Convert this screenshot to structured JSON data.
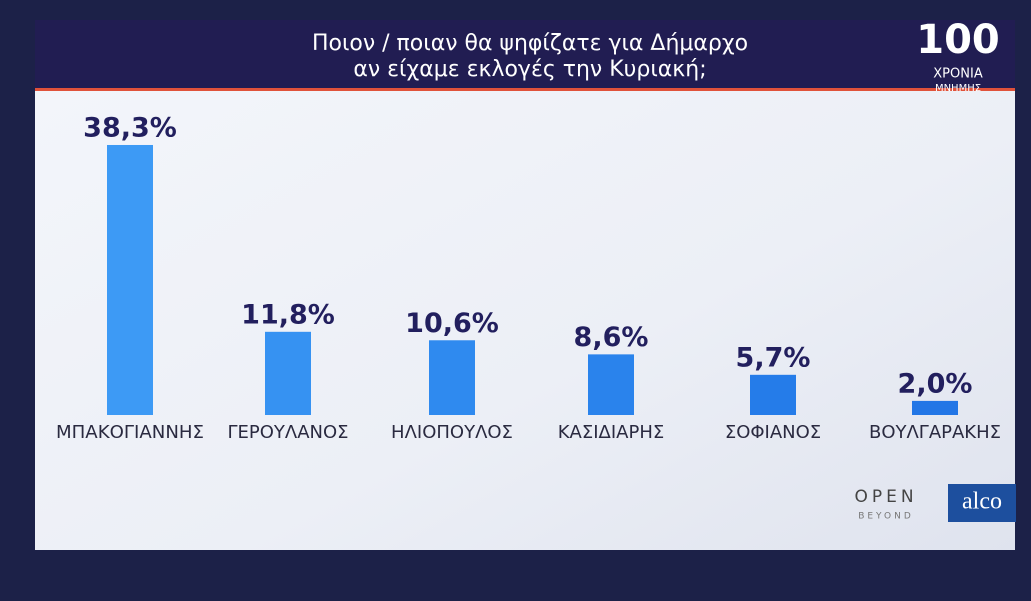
{
  "chart_data": {
    "type": "bar",
    "title": [
      "Ποιον / ποιαν θα ψηφίζατε για Δήμαρχο",
      "αν είχαμε εκλογές την Κυριακή;"
    ],
    "categories": [
      "ΜΠΑΚΟΓΙΑΝΝΗΣ",
      "ΓΕΡΟΥΛΑΝΟΣ",
      "ΗΛΙΟΠΟΥΛΟΣ",
      "ΚΑΣΙΔΙΑΡΗΣ",
      "ΣΟΦΙΑΝΟΣ",
      "ΒΟΥΛΓΑΡΑΚΗΣ"
    ],
    "values": [
      38.3,
      11.8,
      10.6,
      8.6,
      5.7,
      2.0
    ],
    "value_labels": [
      "38,3%",
      "11,8%",
      "10,6%",
      "8,6%",
      "5,7%",
      "2,0%"
    ],
    "colors": [
      "#3d9af5",
      "#3692f2",
      "#2f8aef",
      "#2a83ec",
      "#257ce9",
      "#2276e6"
    ]
  },
  "logos": {
    "anniversary": [
      "100",
      "ΧΡΟΝΙΑ",
      "ΜΝΗΜΗΣ"
    ],
    "channel": [
      "OPEN",
      "BEYOND"
    ],
    "pollster": "alco"
  }
}
